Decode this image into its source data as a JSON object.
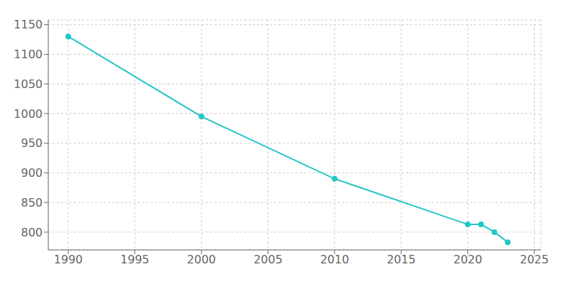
{
  "chart_data": {
    "type": "line",
    "x": [
      1990,
      2000,
      2010,
      2020,
      2021,
      2022,
      2023
    ],
    "values": [
      1130,
      995,
      890,
      813,
      813,
      800,
      783
    ],
    "color": "#26C6C6",
    "marker": "circle",
    "xlim": [
      1988.5,
      2025.5
    ],
    "xticks": [
      1990,
      1995,
      2000,
      2005,
      2010,
      2015,
      2020,
      2025
    ],
    "ylim": [
      770,
      1158
    ],
    "yticks": [
      800,
      850,
      900,
      950,
      1000,
      1050,
      1100,
      1150
    ],
    "grid": true
  }
}
